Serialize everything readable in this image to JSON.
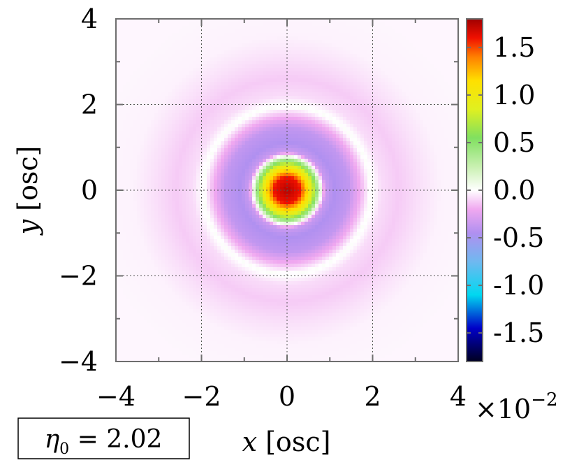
{
  "chart_data": {
    "type": "heatmap",
    "title": "",
    "xlabel_var": "x",
    "xlabel_unit": "[osc]",
    "ylabel_var": "y",
    "ylabel_unit": "[osc]",
    "xlim": [
      -4,
      4
    ],
    "ylim": [
      -4,
      4
    ],
    "x_ticks": [
      "−4",
      "−2",
      "0",
      "2",
      "4"
    ],
    "y_ticks": [
      "4",
      "2",
      "0",
      "−2",
      "−4"
    ],
    "x_tick_values": [
      -4,
      -2,
      0,
      2,
      4
    ],
    "y_tick_values": [
      4,
      2,
      0,
      -2,
      -4
    ],
    "grid": true,
    "colorbar": {
      "range": [
        -1.8,
        1.8
      ],
      "ticks": [
        "1.5",
        "1.0",
        "0.5",
        "0.0",
        "-0.5",
        "-1.0",
        "-1.5"
      ],
      "tick_values": [
        1.5,
        1.0,
        0.5,
        0.0,
        -0.5,
        -1.0,
        -1.5
      ],
      "scale_label_base": "×10",
      "scale_label_exp": "−2",
      "colormap": [
        {
          "v": -1.8,
          "color": "#000020"
        },
        {
          "v": -1.45,
          "color": "#0000c8"
        },
        {
          "v": -1.1,
          "color": "#00d8f0"
        },
        {
          "v": -0.75,
          "color": "#70b8f0"
        },
        {
          "v": -0.45,
          "color": "#b090f0"
        },
        {
          "v": -0.2,
          "color": "#f0a8f0"
        },
        {
          "v": 0.0,
          "color": "#ffffff"
        },
        {
          "v": 0.25,
          "color": "#c8f0b0"
        },
        {
          "v": 0.55,
          "color": "#80e060"
        },
        {
          "v": 0.85,
          "color": "#e0f020"
        },
        {
          "v": 1.15,
          "color": "#ffe000"
        },
        {
          "v": 1.4,
          "color": "#ff8000"
        },
        {
          "v": 1.6,
          "color": "#f01000"
        },
        {
          "v": 1.8,
          "color": "#a00000"
        }
      ]
    },
    "radial_profile": [
      {
        "r": 0.0,
        "value": 1.75
      },
      {
        "r": 0.3,
        "value": 1.6
      },
      {
        "r": 0.45,
        "value": 1.2
      },
      {
        "r": 0.6,
        "value": 0.8
      },
      {
        "r": 0.72,
        "value": 0.35
      },
      {
        "r": 0.8,
        "value": 0.0
      },
      {
        "r": 0.9,
        "value": -0.35
      },
      {
        "r": 1.1,
        "value": -0.45
      },
      {
        "r": 1.45,
        "value": -0.38
      },
      {
        "r": 1.75,
        "value": -0.15
      },
      {
        "r": 1.95,
        "value": 0.02
      },
      {
        "r": 2.2,
        "value": -0.08
      },
      {
        "r": 2.6,
        "value": -0.12
      },
      {
        "r": 3.1,
        "value": -0.07
      },
      {
        "r": 3.6,
        "value": -0.03
      },
      {
        "r": 4.5,
        "value": -0.02
      }
    ],
    "annotation_lhs": "η",
    "annotation_sub": "0",
    "annotation_rhs": " = 2.02"
  }
}
